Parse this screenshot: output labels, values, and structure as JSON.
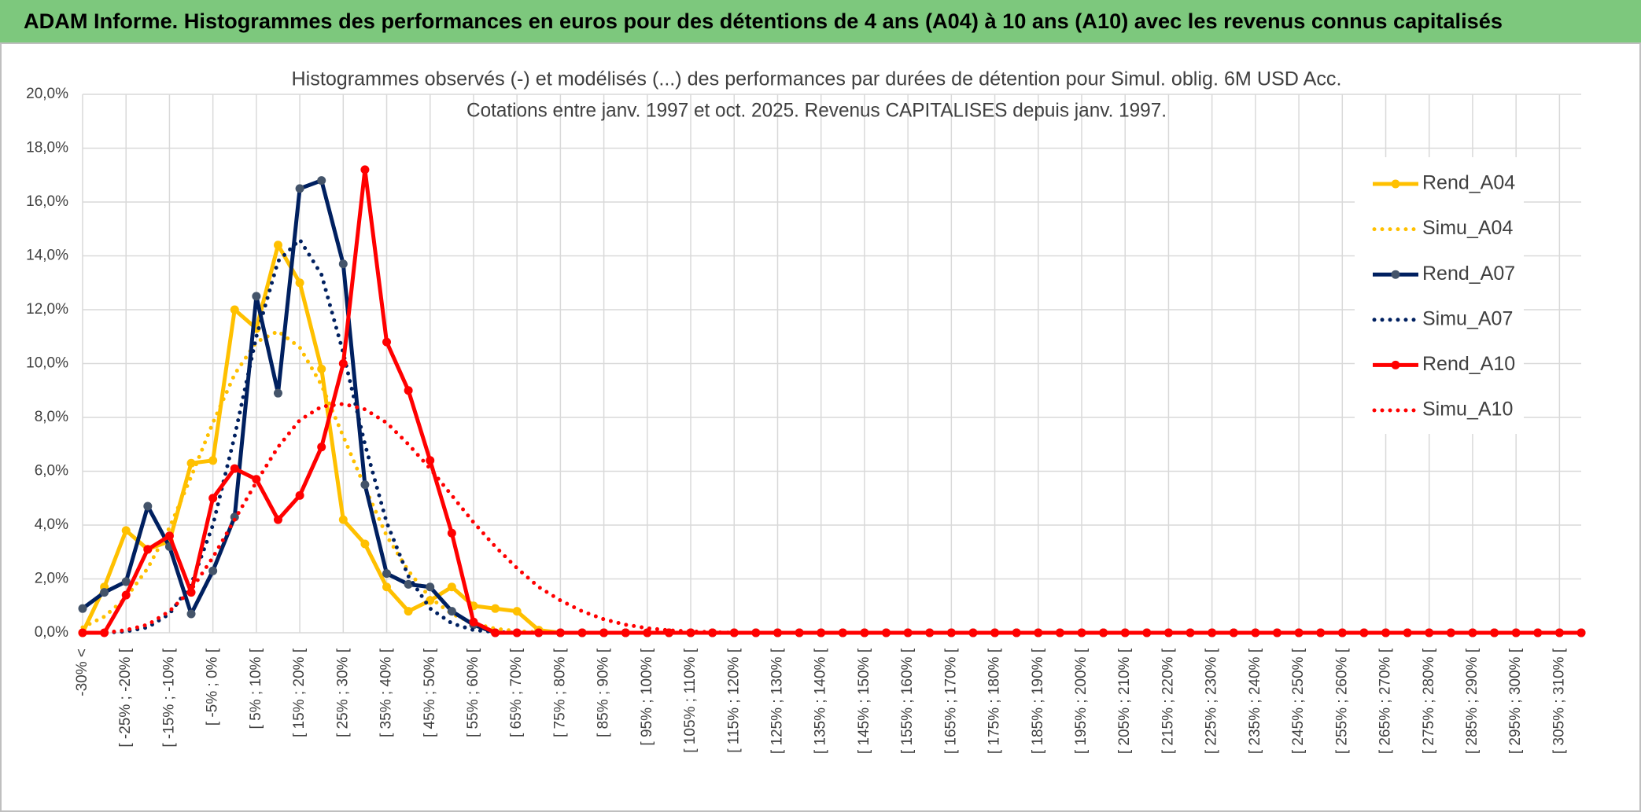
{
  "chart_data": {
    "type": "line",
    "title": "ADAM Informe. Histogrammes des performances en euros pour des détentions de 4 ans (A04) à 10 ans (A10) avec les revenus connus capitalisés",
    "subtitle": [
      "Histogrammes observés (-) et modélisés (...) des performances par durées de détention pour Simul. oblig. 6M USD Acc.",
      "Cotations entre janv. 1997 et oct. 2025. Revenus CAPITALISES depuis janv. 1997."
    ],
    "categories": [
      "-30% <",
      null,
      "[ -25% ; -20% [",
      null,
      "[ -15% ; -10% [",
      null,
      "[ -5% ; 0% [",
      null,
      "[ 5% ; 10% [",
      null,
      "[ 15% ; 20% [",
      null,
      "[ 25% ; 30% [",
      null,
      "[ 35% ; 40% [",
      null,
      "[ 45% ; 50% [",
      null,
      "[ 55% ; 60% [",
      null,
      "[ 65% ; 70% [",
      null,
      "[ 75% ; 80% [",
      null,
      "[ 85% ; 90% [",
      null,
      "[ 95% ; 100% [",
      null,
      "[ 105% ; 110% [",
      null,
      "[ 115% ; 120% [",
      null,
      "[ 125% ; 130% [",
      null,
      "[ 135% ; 140% [",
      null,
      "[ 145% ; 150% [",
      null,
      "[ 155% ; 160% [",
      null,
      "[ 165% ; 170% [",
      null,
      "[ 175% ; 180% [",
      null,
      "[ 185% ; 190% [",
      null,
      "[ 195% ; 200% [",
      null,
      "[ 205% ; 210% [",
      null,
      "[ 215% ; 220% [",
      null,
      "[ 225% ; 230% [",
      null,
      "[ 235% ; 240% [",
      null,
      "[ 245% ; 250% [",
      null,
      "[ 255% ; 260% [",
      null,
      "[ 265% ; 270% [",
      null,
      "[ 275% ; 280% [",
      null,
      "[ 285% ; 290% [",
      null,
      "[ 295% ; 300% [",
      null,
      "[ 305% ; 310% [",
      null
    ],
    "series": [
      {
        "name": "Rend_A04",
        "color": "#ffc000",
        "line_style": "solid",
        "marker": true,
        "values": [
          0,
          1.7,
          3.8,
          3.1,
          3.4,
          6.3,
          6.4,
          12.0,
          11.3,
          14.4,
          13.0,
          9.8,
          4.2,
          3.3,
          1.7,
          0.8,
          1.2,
          1.7,
          1.0,
          0.9,
          0.8,
          0.1,
          0,
          0,
          0,
          0,
          0,
          0,
          0,
          0,
          0,
          0,
          0,
          0,
          0,
          0,
          0,
          0,
          0,
          0,
          0,
          0,
          0,
          0,
          0,
          0,
          0,
          0,
          0,
          0,
          0,
          0,
          0,
          0,
          0,
          0,
          0,
          0,
          0,
          0,
          0,
          0,
          0,
          0,
          0,
          0,
          0,
          0,
          0,
          0
        ]
      },
      {
        "name": "Simu_A04",
        "color": "#ffc000",
        "line_style": "dotted",
        "marker": false,
        "values": [
          0.2,
          0.6,
          1.3,
          2.4,
          3.9,
          5.8,
          7.8,
          9.6,
          10.8,
          11.2,
          10.6,
          9.2,
          7.3,
          5.4,
          3.6,
          2.3,
          1.3,
          0.7,
          0.35,
          0.15,
          0.06,
          0.02,
          0,
          0,
          0,
          0,
          0,
          0,
          0,
          0,
          0,
          0,
          0,
          0,
          0,
          0,
          0,
          0,
          0,
          0,
          0,
          0,
          0,
          0,
          0,
          0,
          0,
          0,
          0,
          0,
          0,
          0,
          0,
          0,
          0,
          0,
          0,
          0,
          0,
          0,
          0,
          0,
          0,
          0,
          0,
          0,
          0,
          0,
          0,
          0
        ]
      },
      {
        "name": "Rend_A07",
        "color": "#002060",
        "marker_color": "#44546a",
        "line_style": "solid",
        "marker": true,
        "values": [
          0.9,
          1.5,
          1.9,
          4.7,
          3.2,
          0.7,
          2.3,
          4.3,
          12.5,
          8.9,
          16.5,
          16.8,
          13.7,
          5.5,
          2.2,
          1.8,
          1.7,
          0.8,
          0.3,
          0,
          0,
          0,
          0,
          0,
          0,
          0,
          0,
          0,
          0,
          0,
          0,
          0,
          0,
          0,
          0,
          0,
          0,
          0,
          0,
          0,
          0,
          0,
          0,
          0,
          0,
          0,
          0,
          0,
          0,
          0,
          0,
          0,
          0,
          0,
          0,
          0,
          0,
          0,
          0,
          0,
          0,
          0,
          0,
          0,
          0,
          0,
          0,
          0,
          0,
          0
        ]
      },
      {
        "name": "Simu_A07",
        "color": "#002060",
        "line_style": "dotted",
        "marker": false,
        "values": [
          0,
          0,
          0.05,
          0.2,
          0.7,
          1.8,
          4.0,
          7.3,
          11.0,
          13.8,
          14.6,
          13.3,
          10.4,
          7.0,
          4.1,
          2.1,
          0.9,
          0.35,
          0.1,
          0.03,
          0,
          0,
          0,
          0,
          0,
          0,
          0,
          0,
          0,
          0,
          0,
          0,
          0,
          0,
          0,
          0,
          0,
          0,
          0,
          0,
          0,
          0,
          0,
          0,
          0,
          0,
          0,
          0,
          0,
          0,
          0,
          0,
          0,
          0,
          0,
          0,
          0,
          0,
          0,
          0,
          0,
          0,
          0,
          0,
          0,
          0,
          0,
          0,
          0,
          0
        ]
      },
      {
        "name": "Rend_A10",
        "color": "#ff0000",
        "line_style": "solid",
        "marker": true,
        "values": [
          0,
          0,
          1.4,
          3.1,
          3.6,
          1.5,
          5.0,
          6.1,
          5.7,
          4.2,
          5.1,
          6.9,
          10.0,
          17.2,
          10.8,
          9.0,
          6.4,
          3.7,
          0.4,
          0,
          0,
          0,
          0,
          0,
          0,
          0,
          0,
          0,
          0,
          0,
          0,
          0,
          0,
          0,
          0,
          0,
          0,
          0,
          0,
          0,
          0,
          0,
          0,
          0,
          0,
          0,
          0,
          0,
          0,
          0,
          0,
          0,
          0,
          0,
          0,
          0,
          0,
          0,
          0,
          0,
          0,
          0,
          0,
          0,
          0,
          0,
          0,
          0,
          0,
          0
        ]
      },
      {
        "name": "Simu_A10",
        "color": "#ff0000",
        "line_style": "dotted",
        "marker": false,
        "values": [
          0,
          0,
          0.1,
          0.3,
          0.8,
          1.6,
          2.8,
          4.2,
          5.6,
          6.9,
          7.9,
          8.4,
          8.5,
          8.3,
          7.8,
          7.0,
          6.1,
          5.1,
          4.1,
          3.2,
          2.4,
          1.7,
          1.2,
          0.8,
          0.5,
          0.3,
          0.17,
          0.09,
          0.05,
          0.02,
          0,
          0,
          0,
          0,
          0,
          0,
          0,
          0,
          0,
          0,
          0,
          0,
          0,
          0,
          0,
          0,
          0,
          0,
          0,
          0,
          0,
          0,
          0,
          0,
          0,
          0,
          0,
          0,
          0,
          0,
          0,
          0,
          0,
          0,
          0,
          0,
          0,
          0,
          0,
          0
        ]
      }
    ],
    "ylim": [
      0,
      20
    ],
    "yticks": [
      {
        "value": 0,
        "label": "0,0%"
      },
      {
        "value": 2,
        "label": "2,0%"
      },
      {
        "value": 4,
        "label": "4,0%"
      },
      {
        "value": 6,
        "label": "6,0%"
      },
      {
        "value": 8,
        "label": "8,0%"
      },
      {
        "value": 10,
        "label": "10,0%"
      },
      {
        "value": 12,
        "label": "12,0%"
      },
      {
        "value": 14,
        "label": "14,0%"
      },
      {
        "value": 16,
        "label": "16,0%"
      },
      {
        "value": 18,
        "label": "18,0%"
      },
      {
        "value": 20,
        "label": "20,0%"
      }
    ],
    "grid": true,
    "legend": "right"
  }
}
